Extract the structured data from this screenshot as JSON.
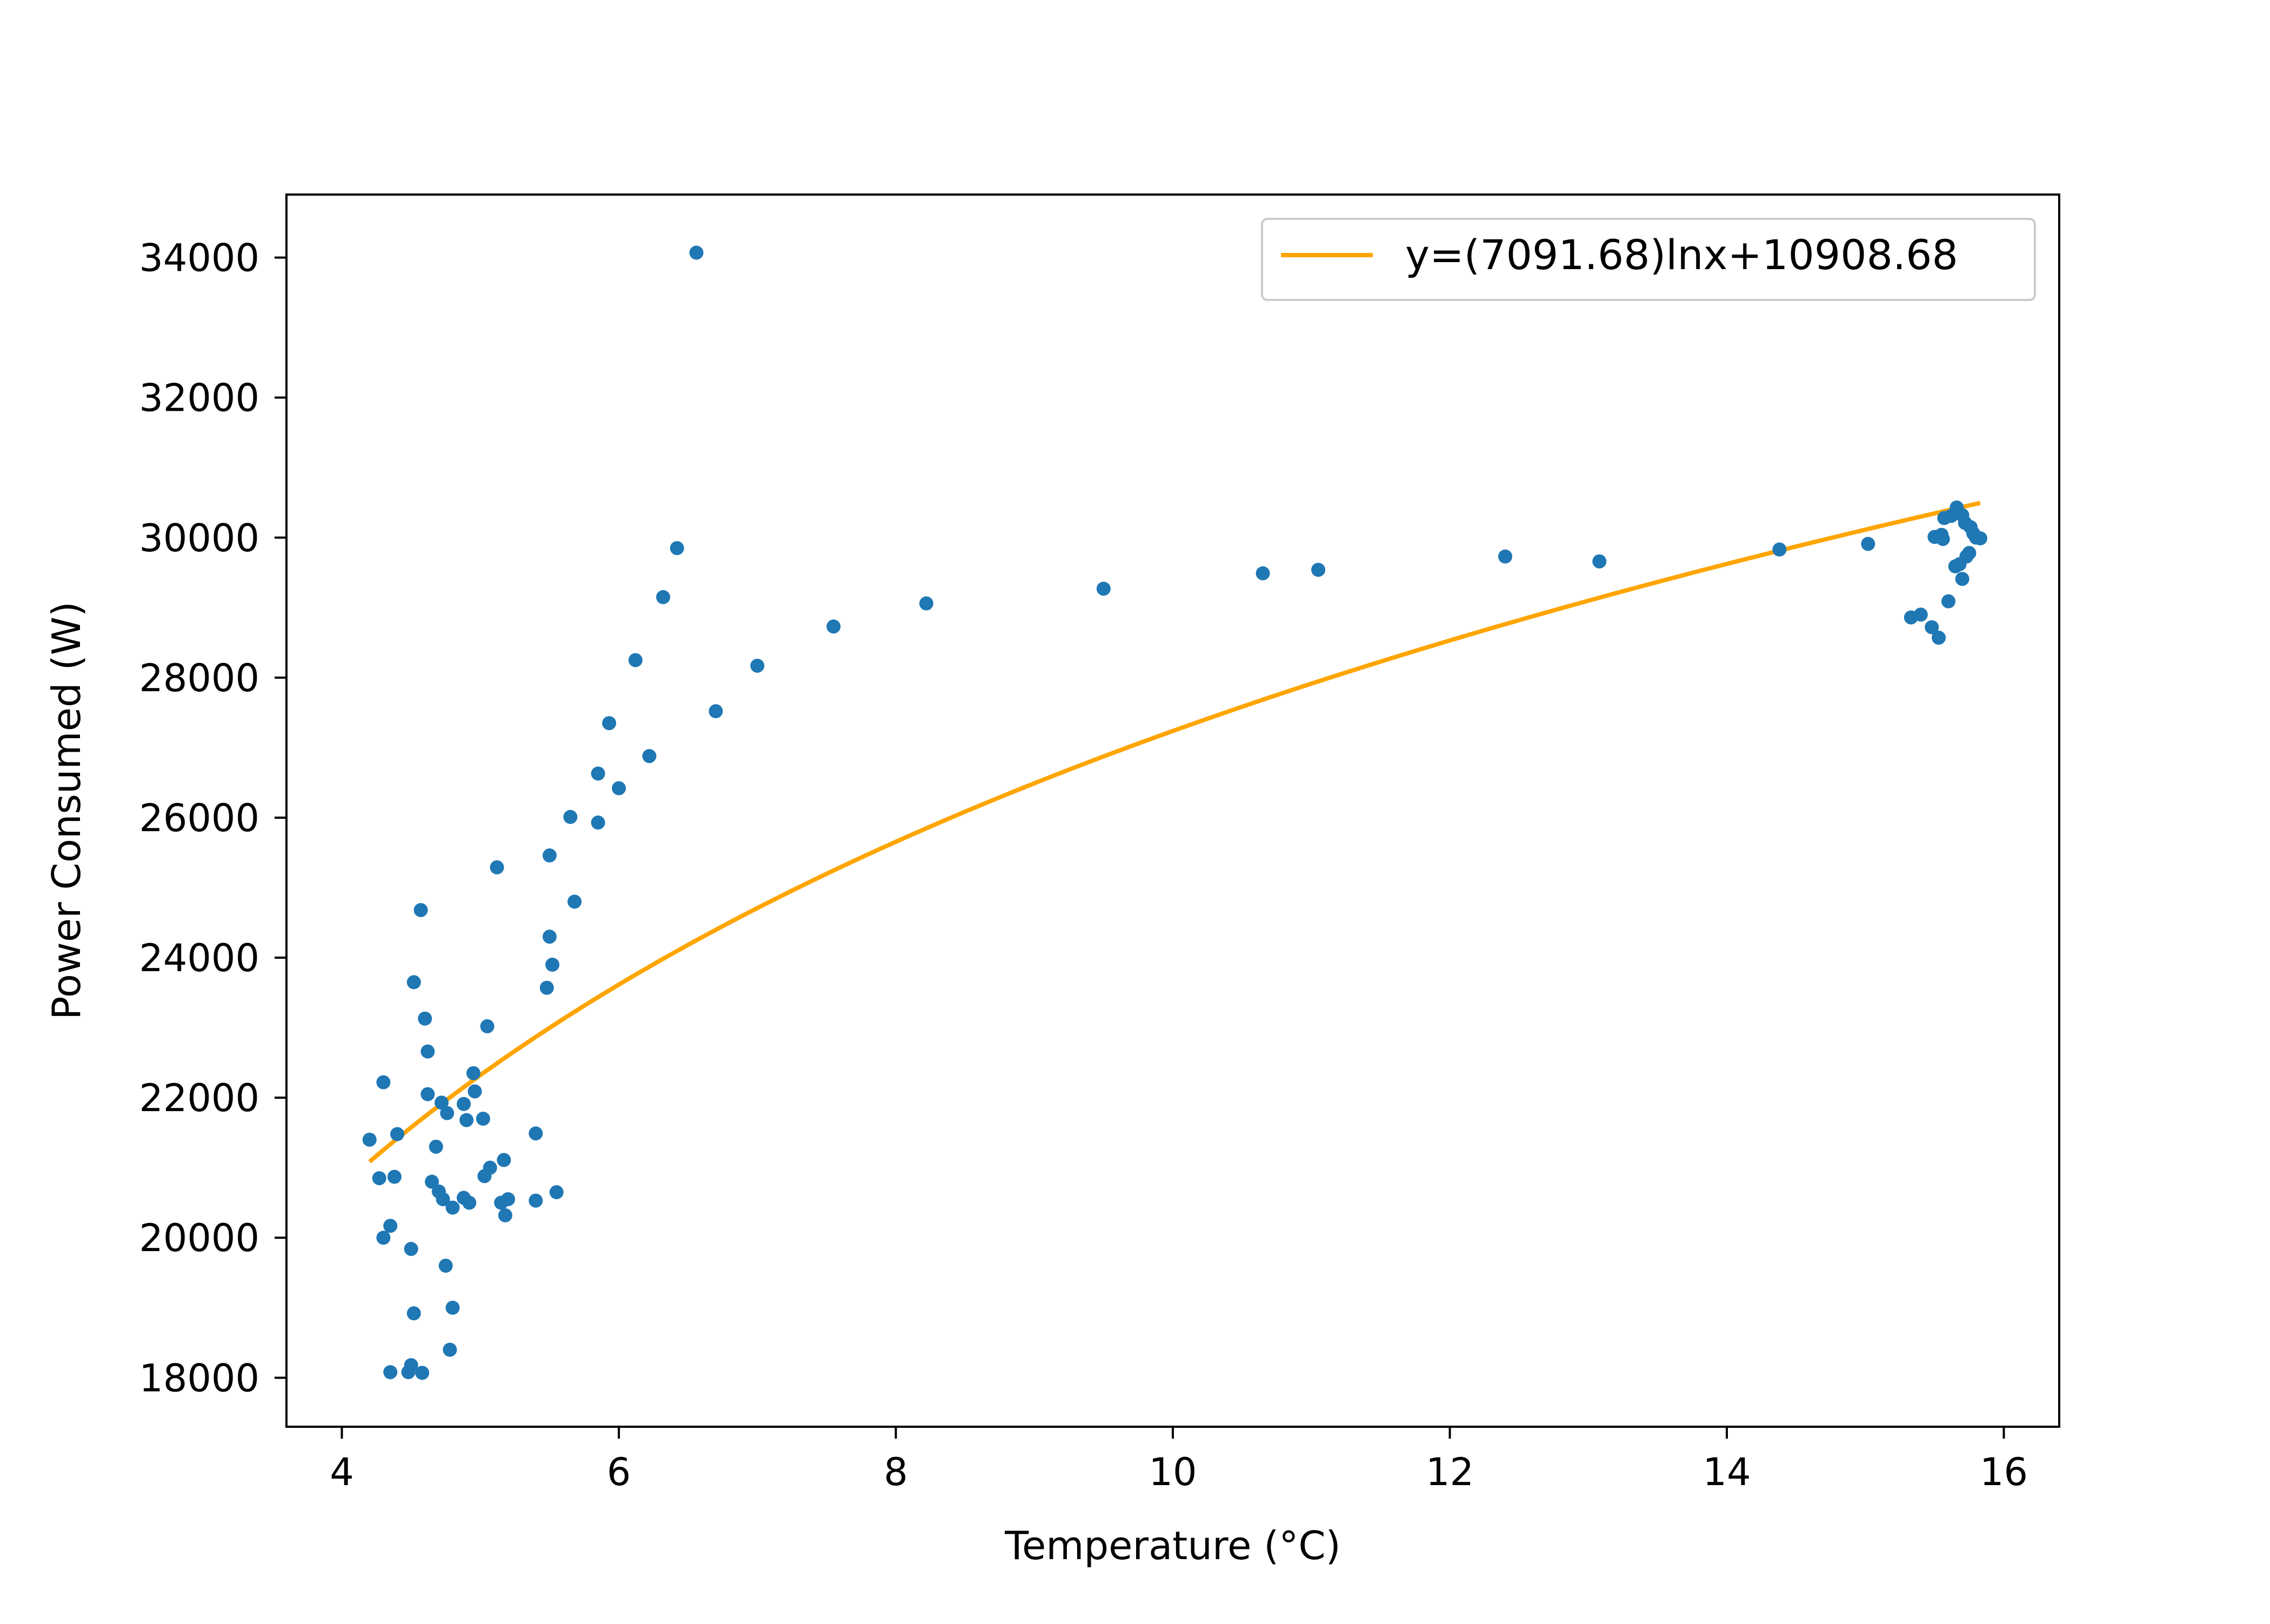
{
  "chart_data": {
    "type": "scatter",
    "title": "",
    "xlabel": "Temperature (°C)",
    "ylabel": "Power Consumed (W)",
    "xlim": [
      3.6,
      16.4
    ],
    "ylim": [
      17300,
      34900
    ],
    "xticks": [
      4,
      6,
      8,
      10,
      12,
      14,
      16
    ],
    "xtick_labels": [
      "4",
      "6",
      "8",
      "10",
      "12",
      "14",
      "16"
    ],
    "yticks": [
      18000,
      20000,
      22000,
      24000,
      26000,
      28000,
      30000,
      32000,
      34000
    ],
    "ytick_labels": [
      "18000",
      "20000",
      "22000",
      "24000",
      "26000",
      "28000",
      "30000",
      "32000",
      "34000"
    ],
    "grid": false,
    "legend_position": "upper right",
    "colors": {
      "scatter": "#1f77b4",
      "fit": "#ffa500",
      "frame": "#000000"
    },
    "fit": {
      "label": "y=(7091.68)lnx+10908.68",
      "a": 7091.68,
      "b": 10908.68,
      "x_range": [
        4.2,
        15.83
      ]
    },
    "series": [
      {
        "points": [
          [
            4.2,
            21400
          ],
          [
            4.27,
            20850
          ],
          [
            4.3,
            22220
          ],
          [
            4.3,
            20000
          ],
          [
            4.35,
            20170
          ],
          [
            4.35,
            18080
          ],
          [
            4.38,
            20870
          ],
          [
            4.4,
            21480
          ],
          [
            4.48,
            18080
          ],
          [
            4.5,
            18180
          ],
          [
            4.5,
            19840
          ],
          [
            4.52,
            18920
          ],
          [
            4.52,
            23650
          ],
          [
            4.57,
            24680
          ],
          [
            4.58,
            18070
          ],
          [
            4.6,
            23130
          ],
          [
            4.62,
            22660
          ],
          [
            4.62,
            22050
          ],
          [
            4.65,
            20800
          ],
          [
            4.68,
            21300
          ],
          [
            4.7,
            20660
          ],
          [
            4.72,
            21930
          ],
          [
            4.73,
            20550
          ],
          [
            4.75,
            19600
          ],
          [
            4.76,
            21780
          ],
          [
            4.78,
            18400
          ],
          [
            4.8,
            20430
          ],
          [
            4.8,
            19000
          ],
          [
            4.88,
            21910
          ],
          [
            4.88,
            20570
          ],
          [
            4.9,
            21680
          ],
          [
            4.92,
            20500
          ],
          [
            4.95,
            22350
          ],
          [
            4.96,
            22090
          ],
          [
            5.02,
            21700
          ],
          [
            5.03,
            20880
          ],
          [
            5.05,
            23020
          ],
          [
            5.07,
            21000
          ],
          [
            5.12,
            25290
          ],
          [
            5.15,
            20500
          ],
          [
            5.17,
            21110
          ],
          [
            5.18,
            20320
          ],
          [
            5.2,
            20550
          ],
          [
            5.4,
            20530
          ],
          [
            5.4,
            21490
          ],
          [
            5.48,
            23570
          ],
          [
            5.5,
            24300
          ],
          [
            5.5,
            25460
          ],
          [
            5.52,
            23900
          ],
          [
            5.55,
            20650
          ],
          [
            5.65,
            26010
          ],
          [
            5.68,
            24800
          ],
          [
            5.85,
            25930
          ],
          [
            5.85,
            26630
          ],
          [
            5.93,
            27350
          ],
          [
            6.0,
            26420
          ],
          [
            6.12,
            28250
          ],
          [
            6.22,
            26880
          ],
          [
            6.32,
            29150
          ],
          [
            6.42,
            29850
          ],
          [
            6.56,
            34070
          ],
          [
            6.7,
            27520
          ],
          [
            7.0,
            28170
          ],
          [
            7.55,
            28730
          ],
          [
            8.22,
            29060
          ],
          [
            9.5,
            29270
          ],
          [
            10.65,
            29490
          ],
          [
            11.05,
            29540
          ],
          [
            12.4,
            29730
          ],
          [
            13.08,
            29660
          ],
          [
            14.38,
            29830
          ],
          [
            15.02,
            29910
          ],
          [
            15.33,
            28860
          ],
          [
            15.4,
            28900
          ],
          [
            15.48,
            28720
          ],
          [
            15.5,
            30010
          ],
          [
            15.53,
            28570
          ],
          [
            15.55,
            30040
          ],
          [
            15.56,
            29980
          ],
          [
            15.57,
            30280
          ],
          [
            15.6,
            29090
          ],
          [
            15.62,
            30310
          ],
          [
            15.65,
            29590
          ],
          [
            15.66,
            30430
          ],
          [
            15.68,
            29620
          ],
          [
            15.7,
            29410
          ],
          [
            15.7,
            30320
          ],
          [
            15.72,
            30210
          ],
          [
            15.73,
            29730
          ],
          [
            15.75,
            29780
          ],
          [
            15.76,
            30150
          ],
          [
            15.78,
            30060
          ],
          [
            15.8,
            30000
          ],
          [
            15.83,
            29990
          ]
        ]
      }
    ]
  }
}
